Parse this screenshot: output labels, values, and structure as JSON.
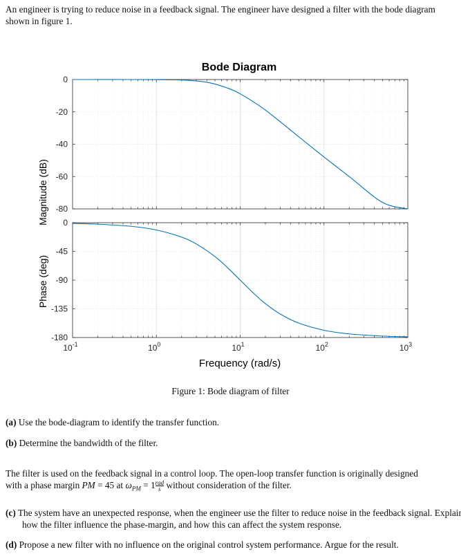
{
  "intro": {
    "text": "An engineer is trying to reduce noise in a feedback signal. The engineer have designed a filter with the bode diagram shown in figure 1."
  },
  "figure": {
    "caption": "Figure 1: Bode diagram of filter",
    "chart_data": {
      "type": "line",
      "title": "Bode Diagram",
      "xlabel": "Frequency (rad/s)",
      "xscale": "log",
      "xlim": [
        0.1,
        1000
      ],
      "xticks": [
        {
          "value": 0.1,
          "base": "10",
          "exp": "-1"
        },
        {
          "value": 1,
          "base": "10",
          "exp": "0"
        },
        {
          "value": 10,
          "base": "10",
          "exp": "1"
        },
        {
          "value": 100,
          "base": "10",
          "exp": "2"
        },
        {
          "value": 1000,
          "base": "10",
          "exp": "3"
        }
      ],
      "grid": true,
      "line_color": "#0072bd",
      "subplots": [
        {
          "name": "magnitude",
          "ylabel": "Magnitude (dB)",
          "ylim": [
            -80,
            0
          ],
          "yticks": [
            "0",
            "-20",
            "-40",
            "-60",
            "-80"
          ],
          "series": [
            {
              "x": [
                0.1,
                0.5,
                1,
                2,
                3,
                4,
                5,
                7,
                10,
                20,
                50,
                100,
                200,
                500,
                1000
              ],
              "y": [
                0,
                0,
                -0.1,
                -0.3,
                -0.9,
                -1.7,
                -2.8,
                -5.2,
                -8.8,
                -18.9,
                -35.4,
                -47.9,
                -60.0,
                -76.0,
                -88.0
              ]
            }
          ]
        },
        {
          "name": "phase",
          "ylabel": "Phase (deg)",
          "ylim": [
            -180,
            0
          ],
          "yticks": [
            "0",
            "-45",
            "-90",
            "-135",
            "-180"
          ],
          "series": [
            {
              "x": [
                0.1,
                0.2,
                0.5,
                1,
                2,
                3,
                5,
                7,
                10,
                15,
                20,
                30,
                50,
                100,
                200,
                500,
                1000
              ],
              "y": [
                -1.1,
                -2.3,
                -5.7,
                -11.4,
                -22.6,
                -33.4,
                -53.1,
                -70.0,
                -90.0,
                -112.6,
                -126.9,
                -143.1,
                -157.4,
                -168.6,
                -174.3,
                -177.7,
                -178.9
              ]
            }
          ]
        }
      ]
    }
  },
  "questions_a": [
    {
      "label": "(a)",
      "text": "Use the bode-diagram to identify the transfer function."
    },
    {
      "label": "(b)",
      "text": "Determine the bandwidth of the filter."
    }
  ],
  "middle": {
    "line1": "The filter is used on the feedback signal in a control loop. The open-loop transfer function is originally designed",
    "pre": "with a phase margin",
    "pm_sym": "PM",
    "pm_eq": " = 45 at ",
    "omega_sym": "ω",
    "omega_sub": "PM",
    "omega_eq": " = 1",
    "frac_num": "rad",
    "frac_den": "s",
    "post": "without consideration of the filter."
  },
  "questions_c": [
    {
      "label": "(c)",
      "text": "The system have an unexpected response, when the engineer use the filter to reduce noise in the feedback signal. Explain how the filter influence the phase-margin, and how this can affect the system response."
    },
    {
      "label": "(d)",
      "text": "Propose a new filter with no influence on the original control system performance. Argue for the result."
    }
  ]
}
